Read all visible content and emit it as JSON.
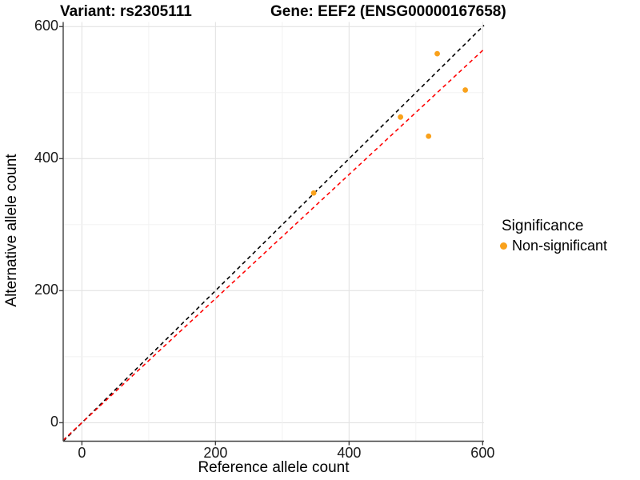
{
  "titles": {
    "left": "Variant: rs2305111",
    "right": "Gene: EEF2 (ENSG00000167658)"
  },
  "axes": {
    "xlabel": "Reference allele count",
    "ylabel": "Alternative allele count"
  },
  "legend": {
    "title": "Significance",
    "items": [
      {
        "label": "Non-significant",
        "color": "#F9A11B"
      }
    ]
  },
  "colors": {
    "point": "#F9A11B",
    "grid_major": "#E3E3E3",
    "grid_minor": "#F1F1F1",
    "axis": "#404040",
    "identity_line": "#000000",
    "fit_line": "#FF0000",
    "tick_text": "#1a1a1a"
  },
  "chart_data": {
    "type": "scatter",
    "title": "Variant: rs2305111   |   Gene: EEF2 (ENSG00000167658)",
    "xlabel": "Reference allele count",
    "ylabel": "Alternative allele count",
    "xlim": [
      -28,
      602
    ],
    "ylim": [
      -28,
      607
    ],
    "x_ticks": [
      0,
      200,
      400,
      600
    ],
    "y_ticks": [
      0,
      200,
      400,
      600
    ],
    "grid_step": 100,
    "grid": true,
    "legend_position": "right",
    "series": [
      {
        "name": "Non-significant",
        "color": "#F9A11B",
        "points": [
          [
            532,
            559
          ],
          [
            574,
            504
          ],
          [
            477,
            463
          ],
          [
            519,
            434
          ],
          [
            347,
            348
          ]
        ]
      }
    ],
    "lines": [
      {
        "name": "identity",
        "slope": 1.0,
        "intercept": 0,
        "color": "#000000",
        "dash": true
      },
      {
        "name": "regression",
        "slope": 0.94,
        "intercept": 0,
        "color": "#FF0000",
        "dash": true
      }
    ]
  }
}
